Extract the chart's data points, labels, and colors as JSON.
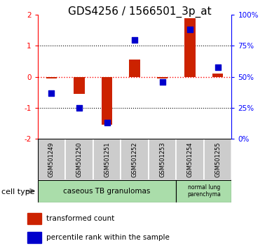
{
  "title": "GDS4256 / 1566501_3p_at",
  "samples": [
    "GSM501249",
    "GSM501250",
    "GSM501251",
    "GSM501252",
    "GSM501253",
    "GSM501254",
    "GSM501255"
  ],
  "transformed_count": [
    -0.05,
    -0.55,
    -1.55,
    0.55,
    -0.05,
    1.9,
    0.1
  ],
  "percentile_rank": [
    37,
    25,
    13,
    80,
    46,
    88,
    58
  ],
  "ylim_left": [
    -2,
    2
  ],
  "ylim_right": [
    0,
    100
  ],
  "yticks_left": [
    -2,
    -1,
    0,
    1,
    2
  ],
  "yticks_right": [
    0,
    25,
    50,
    75,
    100
  ],
  "yticklabels_right": [
    "0%",
    "25%",
    "50%",
    "75%",
    "100%"
  ],
  "bar_color": "#cc2200",
  "dot_color": "#0000cc",
  "title_fontsize": 11,
  "tick_fontsize": 7.5,
  "sample_fontsize": 6,
  "legend_fontsize": 7.5,
  "cell_type_fontsize": 7.5,
  "ct_label_fontsize": 8
}
